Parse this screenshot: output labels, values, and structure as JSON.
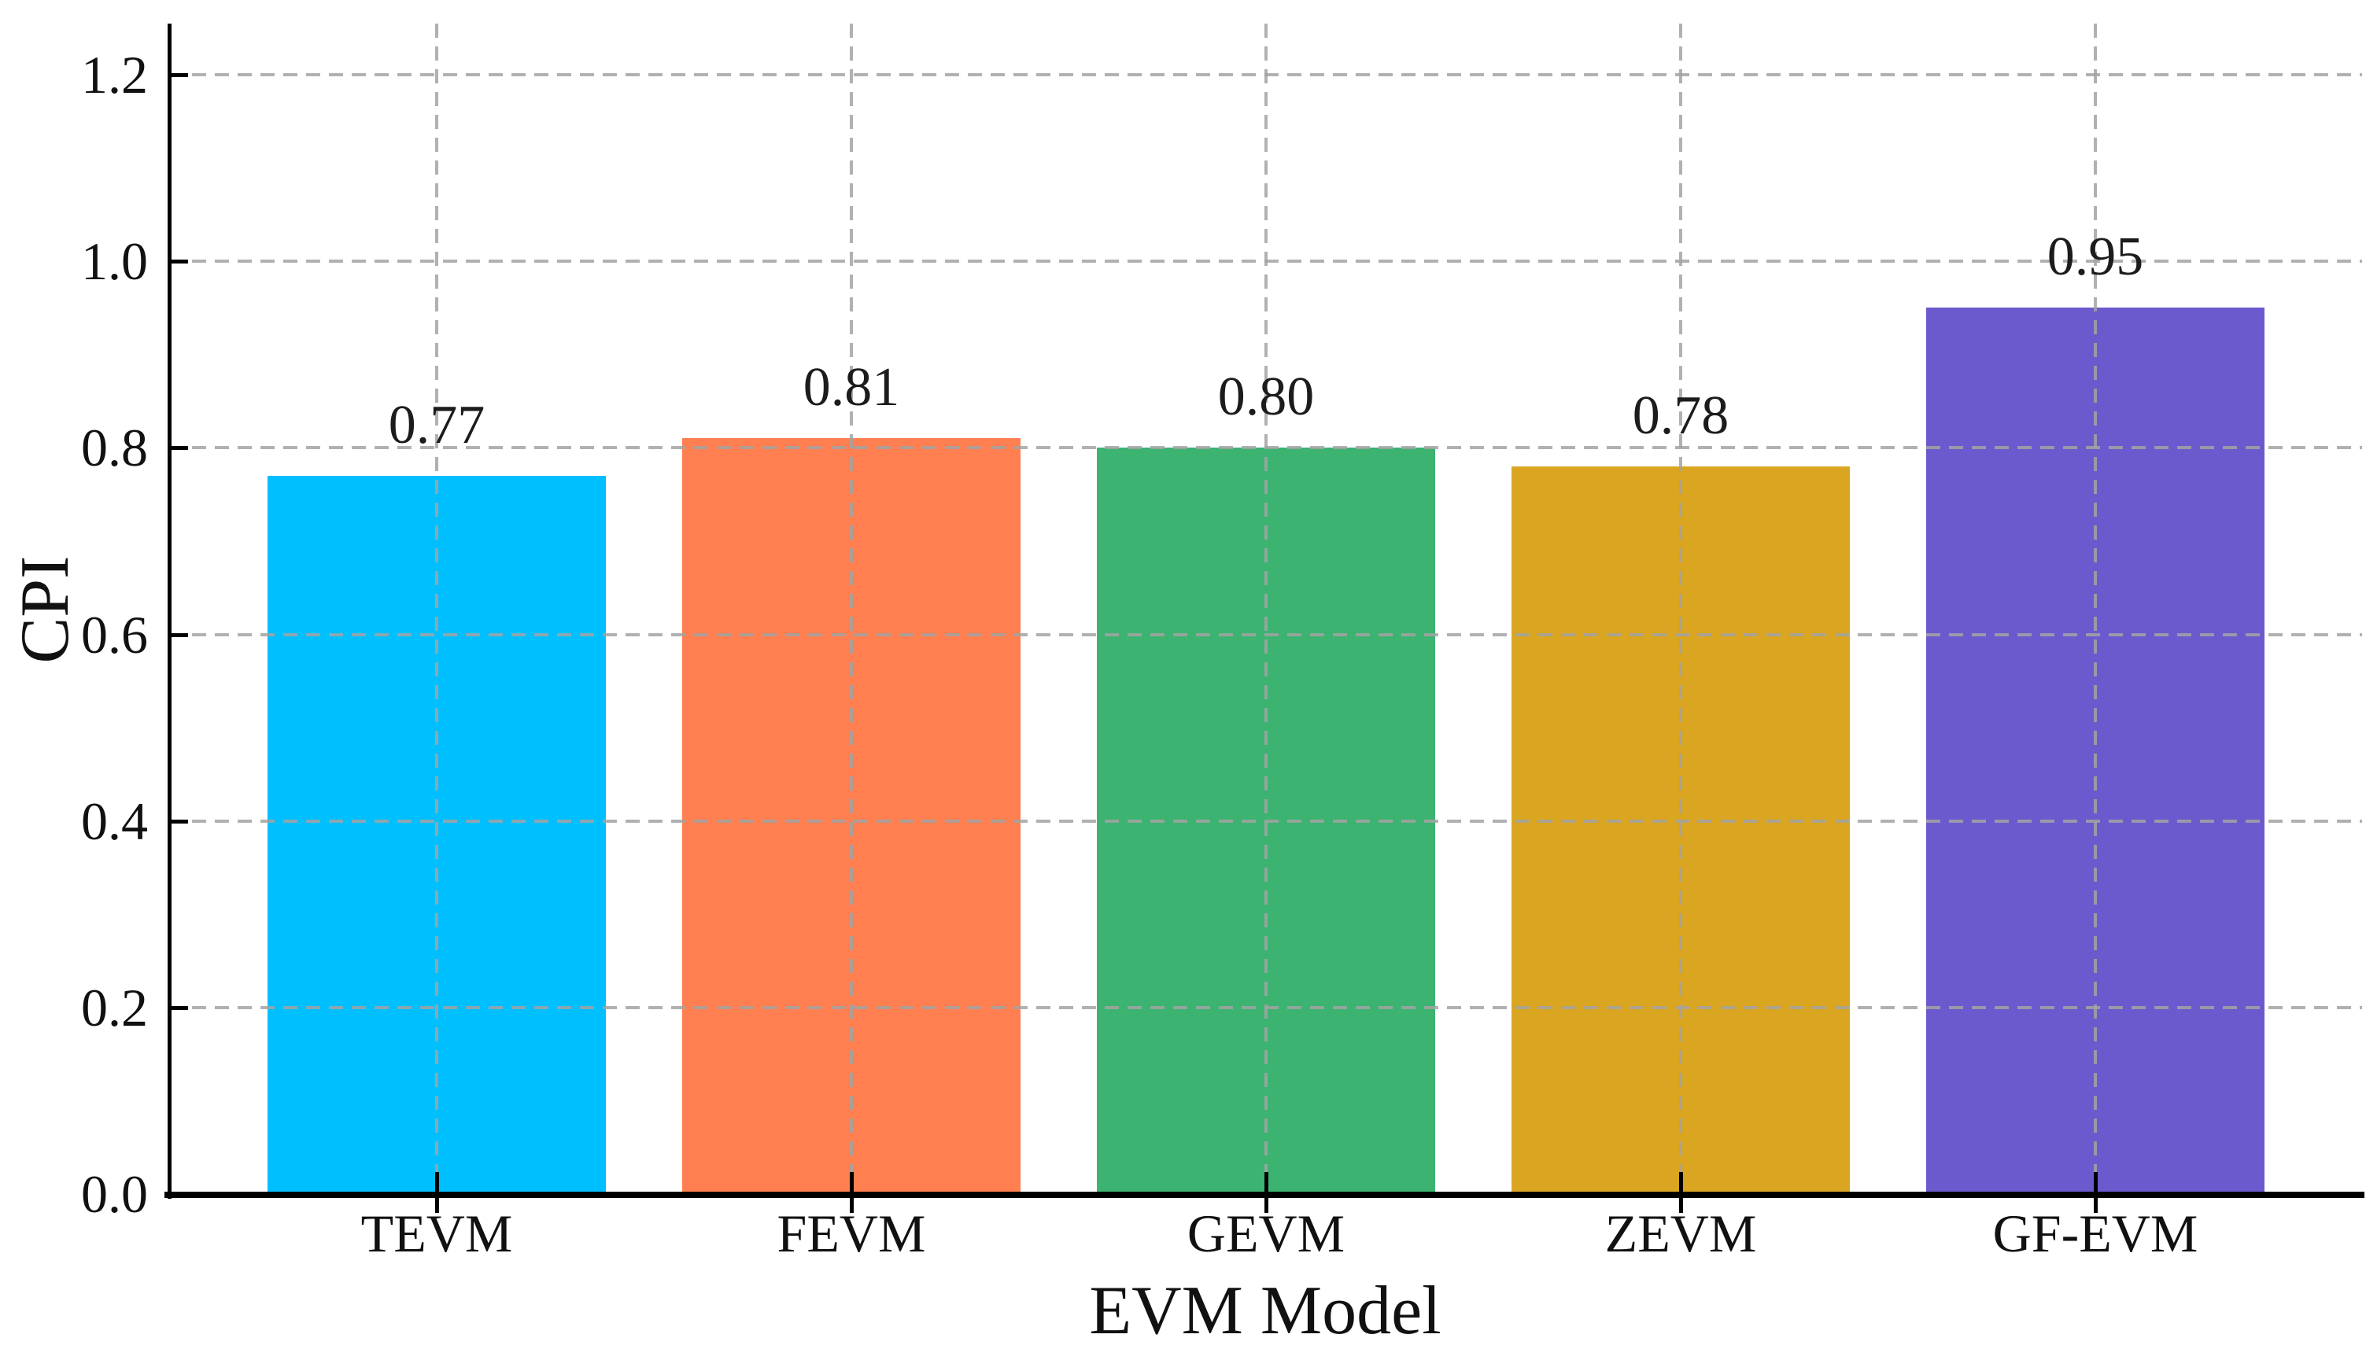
{
  "figure": {
    "background": "#FFFFFF"
  },
  "chart_data": {
    "type": "bar",
    "title": "",
    "xlabel": "EVM Model",
    "ylabel": "CPI",
    "categories": [
      "TEVM",
      "FEVM",
      "GEVM",
      "ZEVM",
      "GF-EVM"
    ],
    "values": [
      0.77,
      0.81,
      0.8,
      0.78,
      0.95
    ],
    "value_labels": [
      "0.77",
      "0.81",
      "0.80",
      "0.78",
      "0.95"
    ],
    "bar_colors": [
      "#00BFFF",
      "#FF7F50",
      "#3CB371",
      "#DAA520",
      "#6A5ACD"
    ],
    "ylim": [
      0,
      1.25
    ],
    "yticks": [
      0.0,
      0.2,
      0.4,
      0.6,
      0.8,
      1.0,
      1.2
    ],
    "ytick_labels": [
      "0.0",
      "0.2",
      "0.4",
      "0.6",
      "0.8",
      "1.0",
      "1.2"
    ],
    "grid": true,
    "grid_style": "dashed",
    "grid_color": "#A3A3A3",
    "axis_color": "#000000",
    "text_color": "#111111",
    "legend": null
  }
}
